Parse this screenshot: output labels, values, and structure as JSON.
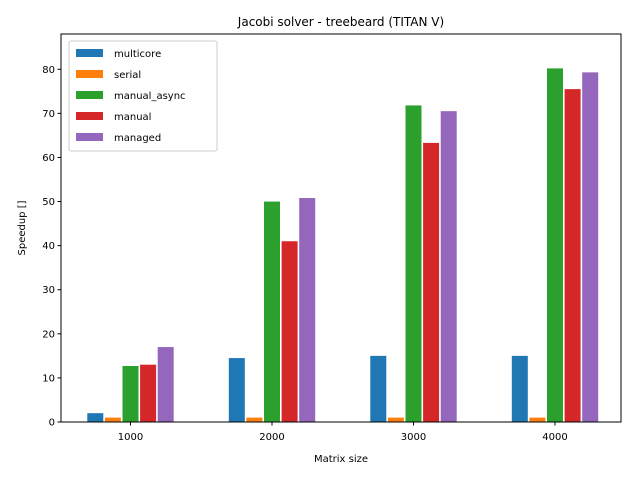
{
  "chart_data": {
    "type": "bar",
    "title": "Jacobi solver - treebeard (TITAN V)",
    "xlabel": "Matrix size",
    "ylabel": "Speedup []",
    "categories": [
      "1000",
      "2000",
      "3000",
      "4000"
    ],
    "ylim": [
      0,
      88
    ],
    "yticks": [
      0,
      10,
      20,
      30,
      40,
      50,
      60,
      70,
      80
    ],
    "grid": false,
    "legend_position": "top-left",
    "series": [
      {
        "name": "multicore",
        "color": "#1f77b4",
        "values": [
          2.0,
          14.5,
          15.0,
          15.0
        ]
      },
      {
        "name": "serial",
        "color": "#ff7f0e",
        "values": [
          1.0,
          1.0,
          1.0,
          1.0
        ]
      },
      {
        "name": "manual_async",
        "color": "#2ca02c",
        "values": [
          12.7,
          50.0,
          71.8,
          80.2
        ]
      },
      {
        "name": "manual",
        "color": "#d62728",
        "values": [
          13.0,
          41.0,
          63.3,
          75.5
        ]
      },
      {
        "name": "managed",
        "color": "#9467bd",
        "values": [
          17.0,
          50.8,
          70.5,
          79.3
        ]
      }
    ]
  }
}
